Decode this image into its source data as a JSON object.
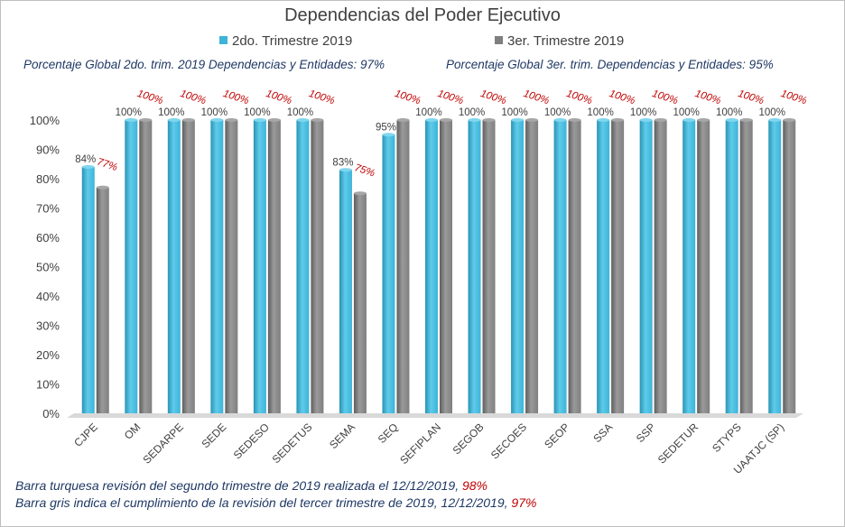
{
  "colors": {
    "series1": "#3db4d8",
    "series2": "#7f7f7f",
    "red": "#c00000",
    "navy": "#1f3864",
    "axis": "#404040"
  },
  "notes": {
    "left": "Porcentaje Global 2do. trim. 2019 Dependencias y Entidades: 97%",
    "right": "Porcentaje Global  3er. trim. Dependencias y Entidades: 95%"
  },
  "footer": {
    "line1_text": "Barra turquesa  revisión  del  segundo  trimestre  de  2019  realizada  el   12/12/2019,",
    "line1_value": "98%",
    "line2_text": "Barra gris indica el cumplimiento  de la revisión  del  tercer trimestre  de  2019,   12/12/2019,",
    "line2_value": "97%"
  },
  "chart_data": {
    "type": "bar",
    "title": "Dependencias del Poder Ejecutivo",
    "categories": [
      "CJPE",
      "OM",
      "SEDARPE",
      "SEDE",
      "SEDESO",
      "SEDETUS",
      "SEMA",
      "SEQ",
      "SEFIPLAN",
      "SEGOB",
      "SECOES",
      "SEOP",
      "SSA",
      "SSP",
      "SEDETUR",
      "STYPS",
      "UAATJC (SP)"
    ],
    "series": [
      {
        "name": "2do. Trimestre 2019",
        "values": [
          84,
          100,
          100,
          100,
          100,
          100,
          83,
          95,
          100,
          100,
          100,
          100,
          100,
          100,
          100,
          100,
          100
        ],
        "labels": [
          "84%",
          "100%",
          "100%",
          "100%",
          "100%",
          "100%",
          "83%",
          "95%",
          "100%",
          "100%",
          "100%",
          "100%",
          "100%",
          "100%",
          "100%",
          "100%",
          "100%"
        ]
      },
      {
        "name": "3er. Trimestre 2019",
        "values": [
          77,
          100,
          100,
          100,
          100,
          100,
          75,
          100,
          100,
          100,
          100,
          100,
          100,
          100,
          100,
          100,
          100
        ],
        "labels": [
          "77%",
          "100%",
          "100%",
          "100%",
          "100%",
          "100%",
          "75%",
          "100%",
          "100%",
          "100%",
          "100%",
          "100%",
          "100%",
          "100%",
          "100%",
          "100%",
          "100%"
        ]
      }
    ],
    "y_ticks": [
      "0%",
      "10%",
      "20%",
      "30%",
      "40%",
      "50%",
      "60%",
      "70%",
      "80%",
      "90%",
      "100%"
    ],
    "ylim": [
      0,
      100
    ],
    "grid": false,
    "legend_position": "top"
  }
}
